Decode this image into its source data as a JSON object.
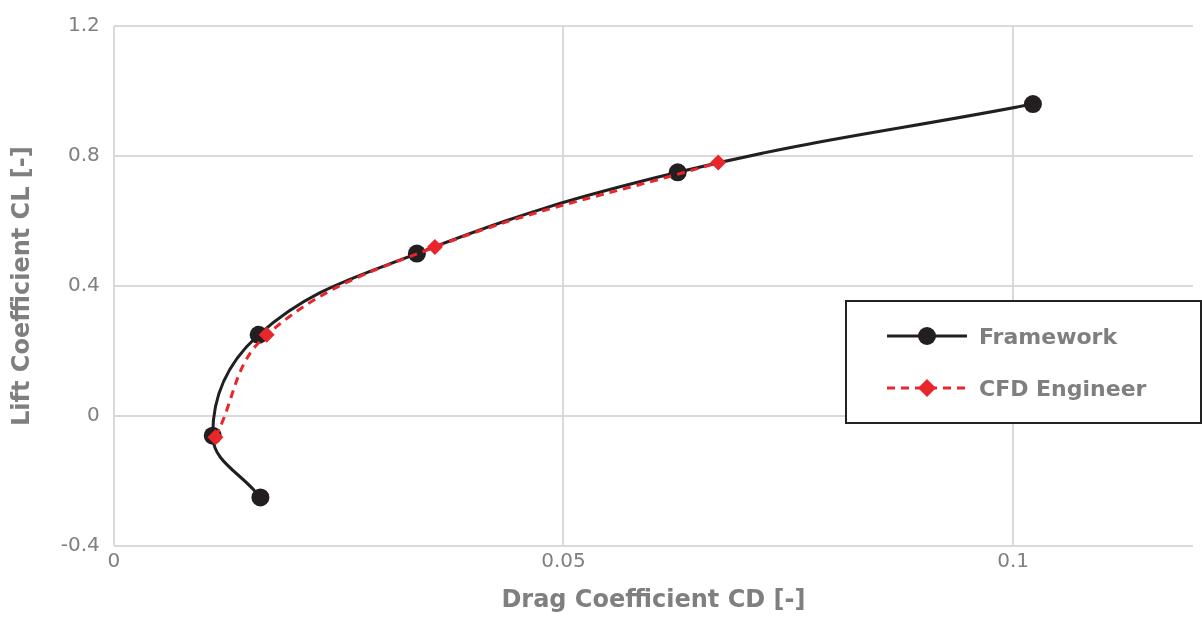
{
  "chart_data": {
    "type": "line",
    "xlabel": "Drag Coefficient CD [-]",
    "ylabel": "Lift Coefficient CL [-]",
    "xlim": [
      0,
      0.12
    ],
    "xticks": [
      0,
      0.05,
      0.1
    ],
    "ylim": [
      -0.4,
      1.2
    ],
    "yticks": [
      -0.4,
      0,
      0.4,
      0.8,
      1.2
    ],
    "grid": true,
    "legend": "right",
    "series": [
      {
        "name": "Framework",
        "color": "#231f20",
        "marker": "circle",
        "line_style": "solid",
        "x": [
          0.0163,
          0.011,
          0.0161,
          0.0337,
          0.0627,
          0.1022
        ],
        "values": [
          -0.25,
          -0.06,
          0.25,
          0.5,
          0.75,
          0.96
        ]
      },
      {
        "name": "CFD Engineer",
        "color": "#e8262b",
        "marker": "diamond",
        "line_style": "dashed",
        "x": [
          0.0113,
          0.017,
          0.0357,
          0.0672
        ],
        "values": [
          -0.065,
          0.25,
          0.52,
          0.78
        ]
      }
    ]
  }
}
